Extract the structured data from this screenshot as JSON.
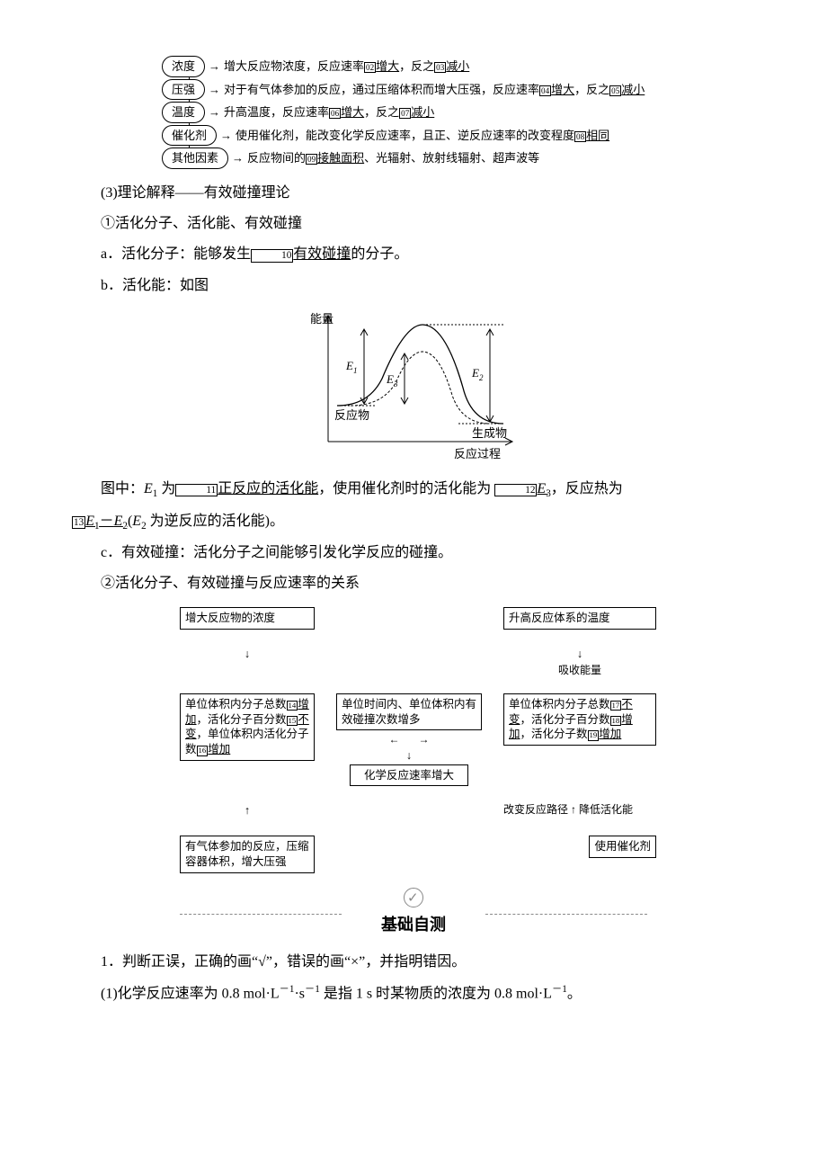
{
  "diagram1": {
    "rows": [
      {
        "node": "浓度",
        "text_pre": "增大反应物浓度，反应速率",
        "num1": "02",
        "blank1": "增大",
        "mid": "，反之",
        "num2": "03",
        "blank2": "减小"
      },
      {
        "node": "压强",
        "text_pre": "对于有气体参加的反应，通过压缩体积而增大压强，反应速率",
        "num1": "04",
        "blank1": "增大",
        "mid": "，反之",
        "num2": "05",
        "blank2": "减小"
      },
      {
        "node": "温度",
        "text_pre": "升高温度，反应速率",
        "num1": "06",
        "blank1": "增大",
        "mid": "，反之",
        "num2": "07",
        "blank2": "减小"
      },
      {
        "node": "催化剂",
        "text_pre": "使用催化剂，能改变化学反应速率，且正、逆反应速率的改变程度",
        "num1": "08",
        "blank1": "相同",
        "mid": "",
        "num2": "",
        "blank2": ""
      },
      {
        "node": "其他因素",
        "text_pre": "反应物间的",
        "num1": "09",
        "blank1": "接触面积",
        "mid": "、光辐射、放射线辐射、超声波等",
        "num2": "",
        "blank2": ""
      }
    ]
  },
  "section3": {
    "heading": "(3)理论解释——有效碰撞理论",
    "sub1": "①活化分子、活化能、有效碰撞",
    "a_pre": "a．活化分子：能够发生",
    "a_num": "10",
    "a_blank": "有效碰撞",
    "a_post": "的分子。",
    "b": "b．活化能：如图"
  },
  "energy_chart": {
    "y_label": "能量",
    "x_label": "反应过程",
    "reactant": "反应物",
    "product": "生成物",
    "E1": "E",
    "E1s": "1",
    "E2": "E",
    "E2s": "2",
    "E3": "E",
    "E3s": "3"
  },
  "tuzhong": {
    "pre": "图中：",
    "e1_pre": " 为",
    "num11": "11",
    "blank11": "正反应的活化能",
    "mid1": "，使用催化剂时的活化能为 ",
    "num12": "12",
    "blank12_E": "E",
    "blank12_s": "3",
    "mid2": "，反应热为",
    "num13": "13",
    "blank13_a": "E",
    "blank13_as": "1",
    "blank13_mid": "－",
    "blank13_b": "E",
    "blank13_bs": "2",
    "tail": "(",
    "e2": "E",
    "e2s": "2",
    "tail2": " 为逆反应的活化能)。"
  },
  "c_line": "c．有效碰撞：活化分子之间能够引发化学反应的碰撞。",
  "sub2": "②活化分子、有效碰撞与反应速率的关系",
  "diagram3": {
    "top_left": "增大反应物的浓度",
    "top_right": "升高反应体系的温度",
    "absorb": "吸收能量",
    "left_box_pre1": "单位体积内分子总数",
    "n14": "14",
    "b14": "增加",
    "l_mid1": "，活化分子百分数",
    "n15": "15",
    "b15": "不变",
    "l_mid2": "，单位体积内活化分子数",
    "n16": "16",
    "b16": "增加",
    "mid_box": "单位时间内、单位体积内有效碰撞次数增多",
    "right_box_pre": "单位体积内分子总数",
    "n17": "17",
    "b17": "不变",
    "r_mid1": "，活化分子百分数",
    "n18": "18",
    "b18": "增加",
    "r_mid2": "，活化分子数",
    "n19": "19",
    "b19": "增加",
    "result": "化学反应速率增大",
    "path_label": "改变反应路径",
    "lower_ea": "降低活化能",
    "catalyst": "使用催化剂",
    "bottom_left": "有气体参加的反应，压缩容器体积，增大压强"
  },
  "divider_label": "基础自测",
  "q1": "1．判断正误，正确的画“√”，错误的画“×”，并指明错因。",
  "q1_1_pre": "(1)化学反应速率为 0.8 mol·L",
  "q1_1_mid": "·s",
  "q1_1_post": " 是指 1 s 时某物质的浓度为 0.8 mol·L",
  "q1_1_end": "。",
  "neg1": "－1"
}
